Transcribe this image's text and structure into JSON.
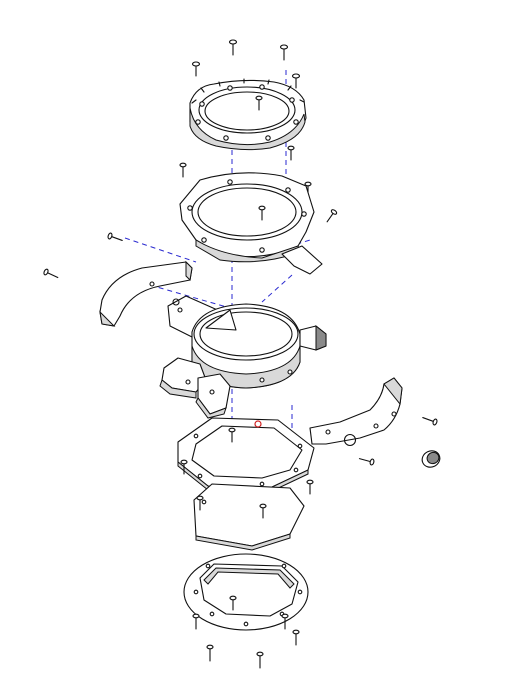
{
  "diagram": {
    "type": "exploded-assembly-view",
    "colors": {
      "line": "#111111",
      "guide": "#2a2ad0",
      "accent": "#d02020",
      "shading": "#d9d9d9"
    }
  }
}
